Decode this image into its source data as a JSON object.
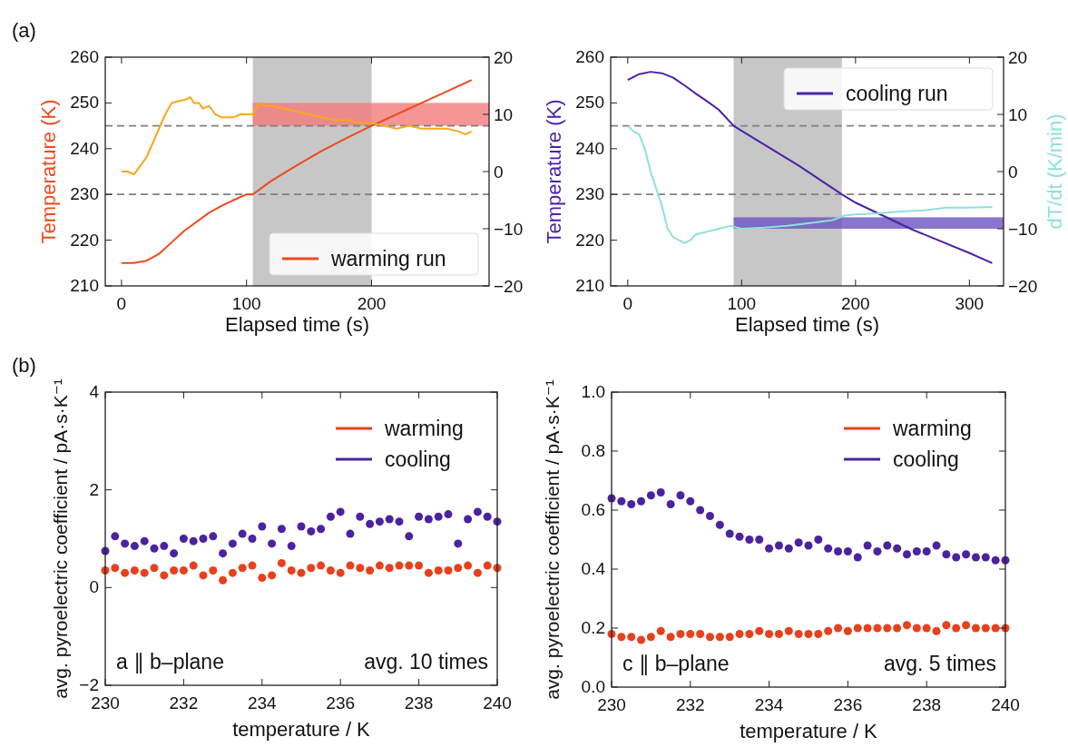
{
  "chart_data": [
    {
      "type": "line",
      "title": "(a)",
      "xlabel": "Elapsed time (s)",
      "ylabel": "Temperature (K)",
      "xlim": [
        -13,
        294
      ],
      "xticks": [
        0,
        100,
        200
      ],
      "ylim": [
        210,
        260
      ],
      "yticks": [
        210,
        220,
        230,
        240,
        250,
        260
      ],
      "y2lim": [
        -20,
        20
      ],
      "y2ticks": [
        -20,
        -10,
        0,
        10,
        20
      ],
      "legend": "bottom right",
      "ref_lines": [
        {
          "axis": "y",
          "value": 245,
          "line_style": "dashed",
          "color": "#808080"
        },
        {
          "axis": "y",
          "value": 230,
          "line_style": "dashed",
          "color": "#808080"
        }
      ],
      "bands": [
        {
          "axis": "x",
          "from": 105,
          "to": 200,
          "color": "#bdbdbd"
        },
        {
          "axis": "y",
          "from": 245,
          "to": 250,
          "color": "#f47a7a"
        }
      ],
      "series": [
        {
          "name": "warming run",
          "color": "#ee4a1c",
          "x": [
            0,
            10,
            20,
            30,
            40,
            50,
            60,
            70,
            80,
            90,
            100,
            105,
            110,
            120,
            140,
            160,
            180,
            200,
            220,
            240,
            260,
            280
          ],
          "values": [
            215,
            215,
            215.5,
            217,
            219.5,
            222,
            224,
            226,
            227.5,
            228.8,
            230,
            230,
            231,
            233,
            236.3,
            239.5,
            242.3,
            245,
            247.5,
            250,
            252.5,
            255
          ]
        },
        {
          "color": "#f7a81b",
          "axis": "y2",
          "x": [
            0,
            5,
            10,
            15,
            20,
            25,
            30,
            35,
            40,
            45,
            50,
            55,
            58,
            62,
            65,
            70,
            75,
            80,
            90,
            95,
            100,
            105,
            110,
            115,
            120,
            130,
            140,
            150,
            160,
            170,
            180,
            190,
            200,
            210,
            220,
            230,
            240,
            250,
            260,
            270,
            275,
            280
          ],
          "values": [
            0,
            0,
            -0.5,
            1,
            2.5,
            5,
            7.5,
            10,
            12,
            12.3,
            12.5,
            13,
            12,
            12,
            11,
            11.5,
            10,
            9.5,
            9.5,
            10,
            10,
            10,
            12,
            11.5,
            11.5,
            11,
            10.5,
            10,
            9.5,
            9,
            9,
            8.5,
            8.5,
            8,
            7.5,
            8,
            7.5,
            7.5,
            7.5,
            7,
            6.5,
            7
          ]
        }
      ]
    },
    {
      "type": "line",
      "xlabel": "Elapsed time (s)",
      "ylabel": "Temperature (K)",
      "y2label": "dT/dt (K/min)",
      "xlim": [
        -15,
        330
      ],
      "xticks": [
        0,
        100,
        200,
        300
      ],
      "ylim": [
        210,
        260
      ],
      "yticks": [
        210,
        220,
        230,
        240,
        250,
        260
      ],
      "y2lim": [
        -20,
        20
      ],
      "y2ticks": [
        -20,
        -10,
        0,
        10,
        20
      ],
      "legend": "top right",
      "ref_lines": [
        {
          "axis": "y",
          "value": 245,
          "line_style": "dashed",
          "color": "#808080"
        },
        {
          "axis": "y",
          "value": 230,
          "line_style": "dashed",
          "color": "#808080"
        }
      ],
      "bands": [
        {
          "axis": "x",
          "from": 93,
          "to": 188,
          "color": "#bdbdbd"
        },
        {
          "axis": "y",
          "from": 222.5,
          "to": 225,
          "color": "#6a52c0"
        }
      ],
      "series": [
        {
          "name": "cooling run",
          "color": "#4b22a8",
          "x": [
            0,
            10,
            20,
            30,
            40,
            50,
            60,
            70,
            80,
            93,
            100,
            150,
            188,
            200,
            250,
            300,
            320
          ],
          "values": [
            255,
            256.3,
            256.8,
            256.5,
            255.5,
            253.8,
            252,
            250.3,
            248.5,
            245,
            243.9,
            236.3,
            230,
            228.2,
            222.3,
            217.2,
            215
          ]
        },
        {
          "color": "#8fe0dc",
          "axis": "y2",
          "x": [
            0,
            5,
            10,
            15,
            20,
            25,
            30,
            35,
            40,
            45,
            50,
            55,
            60,
            70,
            80,
            90,
            100,
            120,
            140,
            160,
            180,
            190,
            200,
            220,
            240,
            260,
            280,
            300,
            320
          ],
          "values": [
            8,
            7,
            6.5,
            4,
            0,
            -3,
            -6,
            -10,
            -11.5,
            -12,
            -12.5,
            -12,
            -11,
            -10.5,
            -10,
            -9.5,
            -10,
            -9.8,
            -9.5,
            -9,
            -8.5,
            -7.7,
            -7.5,
            -7.3,
            -7,
            -6.8,
            -6.3,
            -6.3,
            -6.2
          ]
        }
      ]
    },
    {
      "type": "scatter",
      "title": "(b)",
      "xlabel": "temperature / K",
      "ylabel": "avg. pyroelectric coefficient / pA·s·K⁻¹",
      "xlim": [
        230,
        240
      ],
      "xticks": [
        230,
        232,
        234,
        236,
        238,
        240
      ],
      "ylim": [
        -2,
        4
      ],
      "yticks": [
        -2,
        0,
        2,
        4
      ],
      "legend": "top right",
      "marker": "circle",
      "annotations": [
        "a ∥ b–plane",
        "avg. 10 times"
      ],
      "x": [
        230,
        230.25,
        230.5,
        230.75,
        231,
        231.25,
        231.5,
        231.75,
        232,
        232.25,
        232.5,
        232.75,
        233,
        233.25,
        233.5,
        233.75,
        234,
        234.25,
        234.5,
        234.75,
        235,
        235.25,
        235.5,
        235.75,
        236,
        236.25,
        236.5,
        236.75,
        237,
        237.25,
        237.5,
        237.75,
        238,
        238.25,
        238.5,
        238.75,
        239,
        239.25,
        239.5,
        239.75,
        240
      ],
      "series": [
        {
          "name": "warming",
          "color": "#e8401c",
          "values": [
            0.35,
            0.4,
            0.3,
            0.35,
            0.3,
            0.4,
            0.25,
            0.35,
            0.35,
            0.45,
            0.25,
            0.35,
            0.15,
            0.3,
            0.4,
            0.45,
            0.2,
            0.25,
            0.5,
            0.35,
            0.3,
            0.4,
            0.45,
            0.35,
            0.3,
            0.45,
            0.4,
            0.35,
            0.45,
            0.4,
            0.45,
            0.45,
            0.45,
            0.3,
            0.35,
            0.35,
            0.4,
            0.45,
            0.3,
            0.45,
            0.4
          ]
        },
        {
          "name": "cooling",
          "color": "#4b22a0",
          "values": [
            0.75,
            1.05,
            0.9,
            0.85,
            0.95,
            0.8,
            0.85,
            0.7,
            1.0,
            0.95,
            1.0,
            1.05,
            0.7,
            0.9,
            1.1,
            1.0,
            1.25,
            0.9,
            1.2,
            0.85,
            1.25,
            1.15,
            1.2,
            1.45,
            1.55,
            1.1,
            1.45,
            1.3,
            1.35,
            1.4,
            1.35,
            1.05,
            1.45,
            1.4,
            1.45,
            1.5,
            0.9,
            1.4,
            1.55,
            1.45,
            1.35
          ]
        }
      ]
    },
    {
      "type": "scatter",
      "xlabel": "temperature / K",
      "ylabel": "avg. pyroelectric coefficient / pA·s·K⁻¹",
      "xlim": [
        230,
        240
      ],
      "xticks": [
        230,
        232,
        234,
        236,
        238,
        240
      ],
      "ylim": [
        0,
        1
      ],
      "yticks": [
        {
          "value": 0,
          "label": "0.0"
        },
        {
          "value": 0.2,
          "label": "0.2"
        },
        {
          "value": 0.4,
          "label": "0.4"
        },
        {
          "value": 0.6,
          "label": "0.6"
        },
        {
          "value": 0.8,
          "label": "0.8"
        },
        {
          "value": 1,
          "label": "1.0"
        }
      ],
      "legend": "top right",
      "marker": "circle",
      "annotations": [
        "c ∥ b–plane",
        "avg. 5 times"
      ],
      "x": [
        230,
        230.25,
        230.5,
        230.75,
        231,
        231.25,
        231.5,
        231.75,
        232,
        232.25,
        232.5,
        232.75,
        233,
        233.25,
        233.5,
        233.75,
        234,
        234.25,
        234.5,
        234.75,
        235,
        235.25,
        235.5,
        235.75,
        236,
        236.25,
        236.5,
        236.75,
        237,
        237.25,
        237.5,
        237.75,
        238,
        238.25,
        238.5,
        238.75,
        239,
        239.25,
        239.5,
        239.75,
        240
      ],
      "series": [
        {
          "name": "warming",
          "color": "#e8401c",
          "values": [
            0.18,
            0.17,
            0.17,
            0.16,
            0.17,
            0.19,
            0.17,
            0.18,
            0.18,
            0.18,
            0.17,
            0.17,
            0.17,
            0.18,
            0.18,
            0.19,
            0.18,
            0.18,
            0.19,
            0.18,
            0.18,
            0.18,
            0.19,
            0.2,
            0.19,
            0.2,
            0.2,
            0.2,
            0.2,
            0.2,
            0.21,
            0.2,
            0.2,
            0.19,
            0.21,
            0.2,
            0.21,
            0.2,
            0.2,
            0.2,
            0.2
          ]
        },
        {
          "name": "cooling",
          "color": "#4b22a0",
          "values": [
            0.64,
            0.63,
            0.62,
            0.63,
            0.65,
            0.66,
            0.62,
            0.65,
            0.63,
            0.6,
            0.58,
            0.55,
            0.52,
            0.51,
            0.5,
            0.5,
            0.47,
            0.48,
            0.47,
            0.49,
            0.48,
            0.5,
            0.47,
            0.46,
            0.46,
            0.44,
            0.48,
            0.46,
            0.48,
            0.47,
            0.45,
            0.46,
            0.46,
            0.48,
            0.45,
            0.44,
            0.45,
            0.44,
            0.44,
            0.43,
            0.43
          ]
        }
      ]
    }
  ]
}
